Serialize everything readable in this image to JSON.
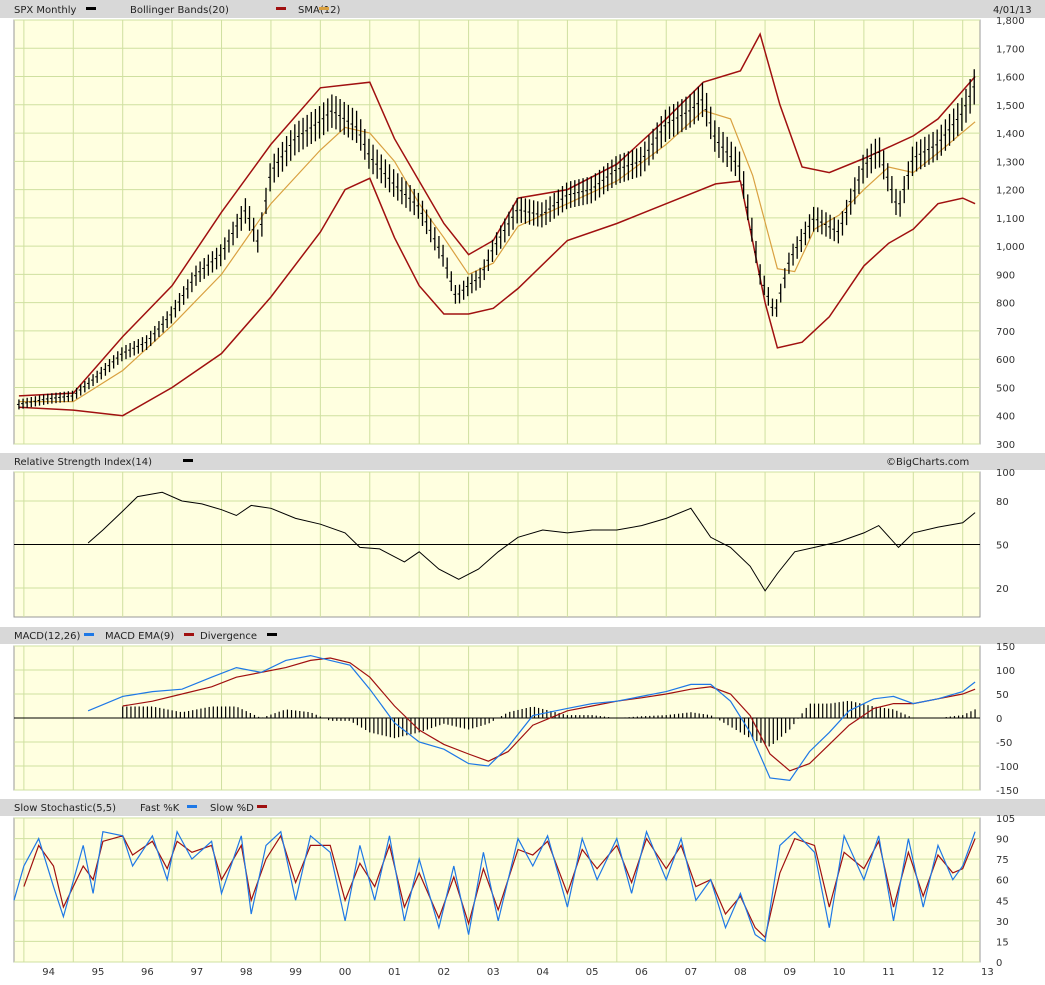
{
  "header": {
    "symbol": "SPX Monthly",
    "bollinger": "Bollinger Bands(20)",
    "sma": "SMA(12)",
    "date": "4/01/13"
  },
  "rsi_panel": {
    "title": "Relative Strength Index(14)",
    "credit": "©BigCharts.com"
  },
  "macd_panel": {
    "macd": "MACD(12,26)",
    "ema": "MACD EMA(9)",
    "div": "Divergence"
  },
  "stoch_panel": {
    "title": "Slow Stochastic(5,5)",
    "fast": "Fast %K",
    "slow": "Slow %D"
  },
  "x_labels": [
    "94",
    "95",
    "96",
    "97",
    "98",
    "99",
    "00",
    "01",
    "02",
    "03",
    "04",
    "05",
    "06",
    "07",
    "08",
    "09",
    "10",
    "11",
    "12",
    "13"
  ],
  "colors": {
    "price": "#000000",
    "bollinger": "#a01010",
    "sma": "#d9a040",
    "macd": "#1e78e6",
    "ema": "#a01010",
    "bg": "#ffffe0",
    "grid": "#cfe0a0"
  },
  "chart_data": [
    {
      "type": "line",
      "name": "price",
      "ylim": [
        300,
        1800
      ],
      "yticks": [
        300,
        400,
        500,
        600,
        700,
        800,
        900,
        1000,
        1100,
        1200,
        1300,
        1400,
        1500,
        1600,
        1700,
        1800
      ],
      "xrange": [
        1993.8,
        2013.35
      ],
      "x": [
        1993.9,
        1994.5,
        1995.0,
        1995.5,
        1996.0,
        1996.5,
        1997.0,
        1997.5,
        1998.0,
        1998.5,
        1998.75,
        1999.0,
        1999.5,
        2000.0,
        2000.25,
        2000.75,
        2001.0,
        2001.5,
        2002.0,
        2002.5,
        2002.75,
        2003.0,
        2003.25,
        2003.5,
        2004.0,
        2004.5,
        2005.0,
        2005.5,
        2006.0,
        2006.5,
        2007.0,
        2007.5,
        2007.75,
        2008.0,
        2008.5,
        2008.9,
        2009.2,
        2009.5,
        2010.0,
        2010.5,
        2011.0,
        2011.3,
        2011.7,
        2012.0,
        2012.5,
        2013.0,
        2013.25
      ],
      "y": [
        440,
        460,
        470,
        540,
        620,
        660,
        760,
        900,
        970,
        1130,
        1010,
        1260,
        1380,
        1440,
        1480,
        1420,
        1320,
        1220,
        1140,
        960,
        820,
        860,
        890,
        990,
        1130,
        1110,
        1180,
        1200,
        1270,
        1300,
        1430,
        1480,
        1520,
        1380,
        1280,
        900,
        760,
        950,
        1100,
        1050,
        1280,
        1340,
        1130,
        1310,
        1360,
        1470,
        1570
      ]
    },
    {
      "type": "line",
      "name": "bollinger_upper",
      "x": [
        1993.9,
        1995.0,
        1996.0,
        1997.0,
        1998.0,
        1999.0,
        2000.0,
        2000.5,
        2001.0,
        2001.5,
        2002.0,
        2002.5,
        2003.0,
        2003.5,
        2004.0,
        2005.0,
        2006.0,
        2007.0,
        2007.75,
        2008.5,
        2008.9,
        2009.3,
        2009.75,
        2010.3,
        2011.0,
        2011.5,
        2012.0,
        2012.5,
        2013.25
      ],
      "y": [
        470,
        480,
        680,
        860,
        1120,
        1360,
        1560,
        1570,
        1580,
        1380,
        1230,
        1080,
        970,
        1020,
        1170,
        1200,
        1290,
        1450,
        1580,
        1620,
        1750,
        1500,
        1280,
        1260,
        1310,
        1350,
        1390,
        1450,
        1600
      ]
    },
    {
      "type": "line",
      "name": "bollinger_lower",
      "x": [
        1993.9,
        1995.0,
        1996.0,
        1997.0,
        1998.0,
        1999.0,
        2000.0,
        2000.5,
        2001.0,
        2001.5,
        2002.0,
        2002.5,
        2003.0,
        2003.5,
        2004.0,
        2005.0,
        2006.0,
        2007.0,
        2008.0,
        2008.5,
        2009.0,
        2009.25,
        2009.75,
        2010.3,
        2011.0,
        2011.5,
        2012.0,
        2012.5,
        2013.0,
        2013.25
      ],
      "y": [
        430,
        420,
        400,
        500,
        620,
        820,
        1050,
        1200,
        1240,
        1030,
        860,
        760,
        760,
        780,
        850,
        1020,
        1080,
        1150,
        1220,
        1230,
        800,
        640,
        660,
        750,
        930,
        1010,
        1060,
        1150,
        1170,
        1150
      ]
    },
    {
      "type": "line",
      "name": "sma",
      "x": [
        1993.9,
        1995.0,
        1996.0,
        1997.0,
        1998.0,
        1999.0,
        2000.0,
        2000.5,
        2001.0,
        2001.5,
        2002.0,
        2002.5,
        2003.0,
        2003.5,
        2004.0,
        2005.0,
        2006.0,
        2007.0,
        2007.75,
        2008.3,
        2008.75,
        2009.25,
        2009.6,
        2010.0,
        2010.5,
        2011.0,
        2011.5,
        2012.0,
        2012.5,
        2013.25
      ],
      "y": [
        450,
        450,
        560,
        720,
        900,
        1150,
        1340,
        1420,
        1400,
        1300,
        1150,
        1030,
        900,
        940,
        1070,
        1150,
        1230,
        1360,
        1480,
        1450,
        1250,
        920,
        910,
        1060,
        1110,
        1200,
        1280,
        1260,
        1330,
        1440
      ]
    },
    {
      "type": "line",
      "name": "rsi",
      "ylim": [
        0,
        100
      ],
      "yticks": [
        20,
        50,
        80,
        100
      ],
      "x": [
        1995.3,
        1995.6,
        1996.0,
        1996.3,
        1996.8,
        1997.2,
        1997.6,
        1998.0,
        1998.3,
        1998.6,
        1999.0,
        1999.5,
        2000.0,
        2000.5,
        2000.8,
        2001.2,
        2001.7,
        2002.0,
        2002.4,
        2002.8,
        2003.2,
        2003.6,
        2004.0,
        2004.5,
        2005.0,
        2005.5,
        2006.0,
        2006.5,
        2007.0,
        2007.5,
        2007.9,
        2008.3,
        2008.7,
        2009.0,
        2009.25,
        2009.6,
        2010.0,
        2010.5,
        2011.0,
        2011.3,
        2011.7,
        2012.0,
        2012.5,
        2013.0,
        2013.25
      ],
      "y": [
        51,
        60,
        73,
        83,
        86,
        80,
        78,
        74,
        70,
        77,
        75,
        68,
        64,
        58,
        48,
        47,
        38,
        45,
        33,
        26,
        33,
        45,
        55,
        60,
        58,
        60,
        60,
        63,
        68,
        75,
        55,
        48,
        35,
        18,
        30,
        45,
        48,
        52,
        58,
        63,
        48,
        58,
        62,
        65,
        72
      ]
    },
    {
      "type": "line",
      "name": "macd",
      "ylim": [
        -150,
        150
      ],
      "yticks": [
        -150,
        -100,
        -50,
        0,
        50,
        100,
        150
      ],
      "x": [
        1995.3,
        1996.0,
        1996.6,
        1997.2,
        1997.8,
        1998.3,
        1998.8,
        1999.3,
        1999.8,
        2000.2,
        2000.6,
        2001.0,
        2001.5,
        2002.0,
        2002.5,
        2003.0,
        2003.4,
        2003.8,
        2004.3,
        2005.0,
        2005.5,
        2006.0,
        2006.5,
        2007.0,
        2007.5,
        2007.9,
        2008.3,
        2008.7,
        2009.1,
        2009.5,
        2009.9,
        2010.3,
        2010.7,
        2011.2,
        2011.6,
        2012.0,
        2012.5,
        2013.0,
        2013.25
      ],
      "y": [
        15,
        45,
        55,
        60,
        85,
        105,
        95,
        120,
        130,
        120,
        110,
        60,
        -10,
        -50,
        -65,
        -95,
        -100,
        -60,
        5,
        20,
        30,
        35,
        45,
        55,
        70,
        70,
        35,
        -30,
        -125,
        -130,
        -70,
        -30,
        15,
        40,
        45,
        30,
        40,
        55,
        75
      ]
    },
    {
      "type": "line",
      "name": "macd_ema",
      "x": [
        1996.0,
        1996.6,
        1997.2,
        1997.8,
        1998.3,
        1998.8,
        1999.3,
        1999.8,
        2000.2,
        2000.6,
        2001.0,
        2001.5,
        2002.0,
        2002.5,
        2003.0,
        2003.4,
        2003.8,
        2004.3,
        2005.0,
        2005.5,
        2006.0,
        2006.5,
        2007.0,
        2007.5,
        2007.9,
        2008.3,
        2008.7,
        2009.1,
        2009.5,
        2009.9,
        2010.3,
        2010.7,
        2011.2,
        2011.6,
        2012.0,
        2012.5,
        2013.0,
        2013.25
      ],
      "y": [
        25,
        35,
        50,
        65,
        85,
        95,
        105,
        120,
        125,
        115,
        85,
        25,
        -25,
        -55,
        -75,
        -90,
        -70,
        -15,
        15,
        25,
        35,
        42,
        50,
        60,
        65,
        50,
        5,
        -75,
        -110,
        -95,
        -55,
        -15,
        20,
        30,
        30,
        40,
        50,
        60
      ]
    },
    {
      "type": "line",
      "name": "stoch_fast_k",
      "ylim": [
        0,
        105
      ],
      "yticks": [
        0,
        15,
        30,
        45,
        60,
        75,
        90,
        105
      ],
      "x": [
        1993.8,
        1994.0,
        1994.3,
        1994.6,
        1994.8,
        1995.2,
        1995.4,
        1995.6,
        1996.0,
        1996.2,
        1996.6,
        1996.9,
        1997.1,
        1997.4,
        1997.8,
        1998.0,
        1998.4,
        1998.6,
        1998.9,
        1999.2,
        1999.5,
        1999.8,
        2000.2,
        2000.5,
        2000.8,
        2001.1,
        2001.4,
        2001.7,
        2002.0,
        2002.4,
        2002.7,
        2003.0,
        2003.3,
        2003.6,
        2004.0,
        2004.3,
        2004.6,
        2005.0,
        2005.3,
        2005.6,
        2006.0,
        2006.3,
        2006.6,
        2007.0,
        2007.3,
        2007.6,
        2007.9,
        2008.2,
        2008.5,
        2008.8,
        2009.0,
        2009.3,
        2009.6,
        2010.0,
        2010.3,
        2010.6,
        2011.0,
        2011.3,
        2011.6,
        2011.9,
        2012.2,
        2012.5,
        2012.8,
        2013.0,
        2013.25
      ],
      "y": [
        45,
        70,
        90,
        55,
        33,
        85,
        50,
        95,
        92,
        70,
        92,
        60,
        95,
        75,
        88,
        50,
        92,
        35,
        85,
        95,
        45,
        92,
        80,
        30,
        85,
        45,
        92,
        30,
        75,
        25,
        70,
        20,
        80,
        30,
        90,
        70,
        92,
        40,
        90,
        60,
        90,
        50,
        95,
        60,
        90,
        45,
        60,
        25,
        50,
        20,
        15,
        85,
        95,
        80,
        25,
        92,
        60,
        92,
        30,
        90,
        40,
        85,
        60,
        70,
        95
      ]
    },
    {
      "type": "line",
      "name": "stoch_slow_d",
      "x": [
        1994.0,
        1994.3,
        1994.6,
        1994.8,
        1995.2,
        1995.4,
        1995.6,
        1996.0,
        1996.2,
        1996.6,
        1996.9,
        1997.1,
        1997.4,
        1997.8,
        1998.0,
        1998.4,
        1998.6,
        1998.9,
        1999.2,
        1999.5,
        1999.8,
        2000.2,
        2000.5,
        2000.8,
        2001.1,
        2001.4,
        2001.7,
        2002.0,
        2002.4,
        2002.7,
        2003.0,
        2003.3,
        2003.6,
        2004.0,
        2004.3,
        2004.6,
        2005.0,
        2005.3,
        2005.6,
        2006.0,
        2006.3,
        2006.6,
        2007.0,
        2007.3,
        2007.6,
        2007.9,
        2008.2,
        2008.5,
        2008.8,
        2009.0,
        2009.3,
        2009.6,
        2010.0,
        2010.3,
        2010.6,
        2011.0,
        2011.3,
        2011.6,
        2011.9,
        2012.2,
        2012.5,
        2012.8,
        2013.0,
        2013.25
      ],
      "y": [
        55,
        85,
        70,
        40,
        70,
        60,
        88,
        92,
        78,
        88,
        68,
        88,
        80,
        85,
        60,
        85,
        45,
        75,
        92,
        58,
        85,
        85,
        45,
        72,
        55,
        85,
        40,
        65,
        32,
        62,
        28,
        68,
        38,
        82,
        78,
        88,
        50,
        82,
        68,
        85,
        58,
        90,
        68,
        85,
        55,
        60,
        35,
        48,
        25,
        18,
        65,
        90,
        85,
        40,
        80,
        68,
        88,
        40,
        80,
        48,
        78,
        65,
        68,
        90
      ]
    }
  ]
}
